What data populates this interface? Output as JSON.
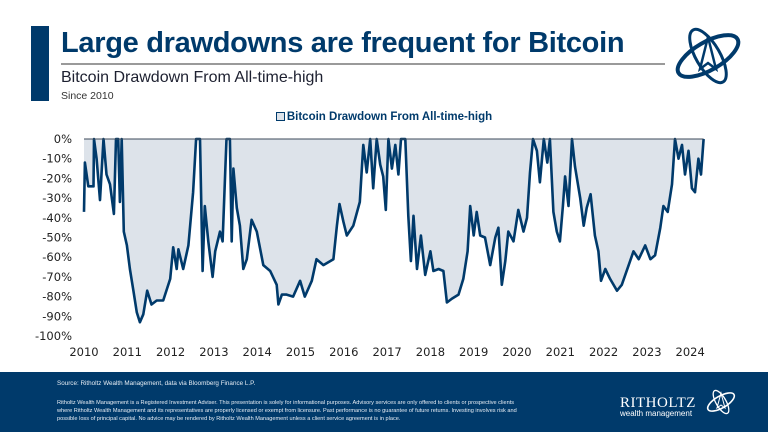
{
  "header": {
    "title": "Large drawdowns are frequent for Bitcoin",
    "subtitle": "Bitcoin Drawdown From All-time-high",
    "since": "Since 2010"
  },
  "footer": {
    "source": "Source: Ritholtz Wealth Management, data via Bloomberg Finance L.P.",
    "disclaimer": "Ritholtz Wealth Management is a Registered Investment Adviser. This presentation is solely for informational purposes. Advisory services are only offered to clients or prospective clients where Ritholtz Wealth Management and its representatives are properly licensed or exempt from licensure. Past performance is no guarantee of future returns. Investing involves risk and possible loss of principal capital. No advice may be rendered by Ritholtz Wealth Management unless a client service agreement is in place.",
    "brand_name": "RITHOLTZ",
    "brand_sub": "wealth management"
  },
  "colors": {
    "accent": "#003a6b",
    "fill": "#dde3ea",
    "rule": "#9a9a9a"
  },
  "chart_data": {
    "type": "area",
    "title": "",
    "legend": [
      "Bitcoin Drawdown From All-time-high"
    ],
    "legend_position": "top",
    "xlabel": "",
    "ylabel": "",
    "xlim": [
      2010,
      2024.35
    ],
    "ylim": [
      -100,
      0
    ],
    "grid": false,
    "x_ticks": [
      "2010",
      "2011",
      "2012",
      "2013",
      "2014",
      "2015",
      "2016",
      "2017",
      "2018",
      "2019",
      "2020",
      "2021",
      "2022",
      "2023",
      "2024"
    ],
    "y_ticks": [
      "0%",
      "-10%",
      "-20%",
      "-30%",
      "-40%",
      "-50%",
      "-60%",
      "-70%",
      "-80%",
      "-90%",
      "-100%"
    ],
    "series": [
      {
        "name": "Bitcoin Drawdown From All-time-high",
        "points": [
          [
            2010.0,
            -37
          ],
          [
            2010.02,
            -12
          ],
          [
            2010.1,
            -24
          ],
          [
            2010.22,
            -24
          ],
          [
            2010.23,
            0
          ],
          [
            2010.29,
            -10
          ],
          [
            2010.37,
            -31
          ],
          [
            2010.45,
            0
          ],
          [
            2010.52,
            -18
          ],
          [
            2010.6,
            -23
          ],
          [
            2010.69,
            -38
          ],
          [
            2010.74,
            0
          ],
          [
            2010.79,
            0
          ],
          [
            2010.83,
            -32
          ],
          [
            2010.87,
            0
          ],
          [
            2010.92,
            -47
          ],
          [
            2010.99,
            -54
          ],
          [
            2011.06,
            -66
          ],
          [
            2011.14,
            -77
          ],
          [
            2011.22,
            -88
          ],
          [
            2011.29,
            -93
          ],
          [
            2011.37,
            -89
          ],
          [
            2011.46,
            -77
          ],
          [
            2011.56,
            -84
          ],
          [
            2011.68,
            -82
          ],
          [
            2011.83,
            -82
          ],
          [
            2011.99,
            -71
          ],
          [
            2012.06,
            -55
          ],
          [
            2012.14,
            -66
          ],
          [
            2012.18,
            -56
          ],
          [
            2012.29,
            -66
          ],
          [
            2012.41,
            -54
          ],
          [
            2012.52,
            -27
          ],
          [
            2012.59,
            0
          ],
          [
            2012.68,
            0
          ],
          [
            2012.74,
            -67
          ],
          [
            2012.79,
            -34
          ],
          [
            2012.87,
            -52
          ],
          [
            2012.97,
            -70
          ],
          [
            2013.03,
            -57
          ],
          [
            2013.14,
            -47
          ],
          [
            2013.2,
            -52
          ],
          [
            2013.26,
            -17
          ],
          [
            2013.29,
            0
          ],
          [
            2013.37,
            0
          ],
          [
            2013.41,
            -52
          ],
          [
            2013.45,
            -15
          ],
          [
            2013.53,
            -35
          ],
          [
            2013.6,
            -44
          ],
          [
            2013.68,
            -66
          ],
          [
            2013.76,
            -61
          ],
          [
            2013.87,
            -41
          ],
          [
            2013.99,
            -47
          ],
          [
            2014.14,
            -64
          ],
          [
            2014.3,
            -67
          ],
          [
            2014.45,
            -74
          ],
          [
            2014.49,
            -84
          ],
          [
            2014.57,
            -79
          ],
          [
            2014.68,
            -79
          ],
          [
            2014.83,
            -80
          ],
          [
            2014.99,
            -72
          ],
          [
            2015.1,
            -80
          ],
          [
            2015.26,
            -72
          ],
          [
            2015.37,
            -61
          ],
          [
            2015.53,
            -64
          ],
          [
            2015.76,
            -61
          ],
          [
            2015.84,
            -44
          ],
          [
            2015.9,
            -33
          ],
          [
            2015.99,
            -42
          ],
          [
            2016.07,
            -49
          ],
          [
            2016.22,
            -44
          ],
          [
            2016.37,
            -32
          ],
          [
            2016.45,
            -3
          ],
          [
            2016.53,
            -17
          ],
          [
            2016.61,
            0
          ],
          [
            2016.68,
            -25
          ],
          [
            2016.76,
            0
          ],
          [
            2016.84,
            -13
          ],
          [
            2016.91,
            -19
          ],
          [
            2016.97,
            -36
          ],
          [
            2017.03,
            0
          ],
          [
            2017.11,
            -15
          ],
          [
            2017.19,
            -3
          ],
          [
            2017.26,
            -18
          ],
          [
            2017.32,
            0
          ],
          [
            2017.42,
            0
          ],
          [
            2017.49,
            -39
          ],
          [
            2017.55,
            -62
          ],
          [
            2017.61,
            -39
          ],
          [
            2017.69,
            -66
          ],
          [
            2017.78,
            -49
          ],
          [
            2017.88,
            -69
          ],
          [
            2018.0,
            -57
          ],
          [
            2018.07,
            -67
          ],
          [
            2018.19,
            -66
          ],
          [
            2018.3,
            -67
          ],
          [
            2018.38,
            -83
          ],
          [
            2018.5,
            -81
          ],
          [
            2018.65,
            -79
          ],
          [
            2018.76,
            -71
          ],
          [
            2018.86,
            -57
          ],
          [
            2018.92,
            -34
          ],
          [
            2019.0,
            -49
          ],
          [
            2019.07,
            -37
          ],
          [
            2019.15,
            -49
          ],
          [
            2019.26,
            -50
          ],
          [
            2019.38,
            -64
          ],
          [
            2019.5,
            -50
          ],
          [
            2019.57,
            -45
          ],
          [
            2019.65,
            -74
          ],
          [
            2019.73,
            -62
          ],
          [
            2019.8,
            -47
          ],
          [
            2019.92,
            -52
          ],
          [
            2020.03,
            -36
          ],
          [
            2020.15,
            -47
          ],
          [
            2020.23,
            -40
          ],
          [
            2020.3,
            -17
          ],
          [
            2020.37,
            0
          ],
          [
            2020.46,
            -6
          ],
          [
            2020.53,
            -22
          ],
          [
            2020.62,
            0
          ],
          [
            2020.7,
            -12
          ],
          [
            2020.76,
            0
          ],
          [
            2020.84,
            -37
          ],
          [
            2020.92,
            -47
          ],
          [
            2020.99,
            -52
          ],
          [
            2021.06,
            -34
          ],
          [
            2021.11,
            -19
          ],
          [
            2021.19,
            -34
          ],
          [
            2021.27,
            0
          ],
          [
            2021.34,
            -14
          ],
          [
            2021.46,
            -30
          ],
          [
            2021.54,
            -44
          ],
          [
            2021.61,
            -35
          ],
          [
            2021.7,
            -28
          ],
          [
            2021.8,
            -49
          ],
          [
            2021.88,
            -57
          ],
          [
            2021.94,
            -72
          ],
          [
            2022.04,
            -66
          ],
          [
            2022.15,
            -71
          ],
          [
            2022.31,
            -77
          ],
          [
            2022.42,
            -74
          ],
          [
            2022.58,
            -64
          ],
          [
            2022.69,
            -57
          ],
          [
            2022.81,
            -61
          ],
          [
            2022.96,
            -54
          ],
          [
            2023.08,
            -61
          ],
          [
            2023.19,
            -59
          ],
          [
            2023.31,
            -45
          ],
          [
            2023.38,
            -34
          ],
          [
            2023.48,
            -37
          ],
          [
            2023.58,
            -23
          ],
          [
            2023.65,
            0
          ],
          [
            2023.73,
            -10
          ],
          [
            2023.81,
            -3
          ],
          [
            2023.88,
            -18
          ],
          [
            2023.96,
            -6
          ],
          [
            2024.04,
            -25
          ],
          [
            2024.11,
            -27
          ],
          [
            2024.19,
            -10
          ],
          [
            2024.25,
            -18
          ],
          [
            2024.31,
            0
          ]
        ]
      }
    ]
  }
}
